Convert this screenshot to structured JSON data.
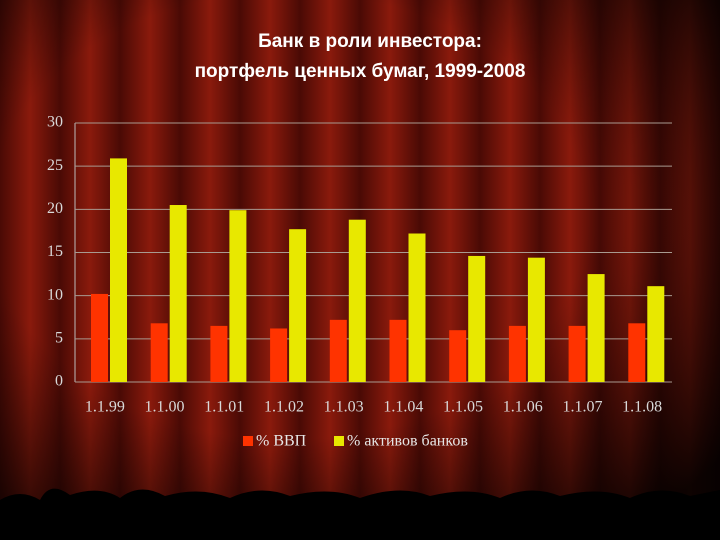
{
  "chart_data": {
    "type": "bar",
    "title": "Банк в роли инвестора:",
    "subtitle": "портфель ценных бумаг, 1999-2008",
    "categories": [
      "1.1.99",
      "1.1.00",
      "1.1.01",
      "1.1.02",
      "1.1.03",
      "1.1.04",
      "1.1.05",
      "1.1.06",
      "1.1.07",
      "1.1.08"
    ],
    "series": [
      {
        "name": "% ВВП",
        "color": "#ff3300",
        "values": [
          10.2,
          6.8,
          6.5,
          6.2,
          7.2,
          7.2,
          6.0,
          6.5,
          6.5,
          6.8
        ]
      },
      {
        "name": "% активов банков",
        "color": "#e8e800",
        "values": [
          25.9,
          20.5,
          19.9,
          17.7,
          18.8,
          17.2,
          14.6,
          14.4,
          12.5,
          11.1
        ]
      }
    ],
    "ylim": [
      0,
      30
    ],
    "yticks": [
      0,
      5,
      10,
      15,
      20,
      25,
      30
    ],
    "grid": true,
    "legend": "bottom"
  }
}
